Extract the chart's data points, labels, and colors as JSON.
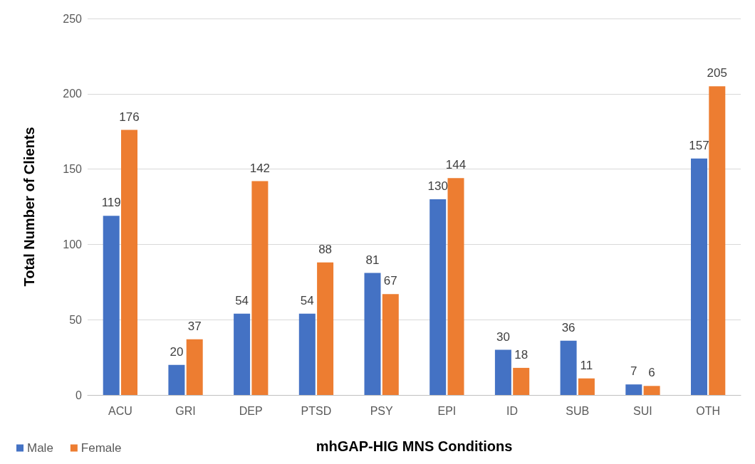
{
  "chart_data": {
    "type": "bar",
    "xlabel": "mhGAP-HIG MNS Conditions",
    "ylabel": "Total Number of Clients",
    "categories": [
      "ACU",
      "GRI",
      "DEP",
      "PTSD",
      "PSY",
      "EPI",
      "ID",
      "SUB",
      "SUI",
      "OTH"
    ],
    "series": [
      {
        "name": "Male",
        "color": "#4472c4",
        "values": [
          119,
          20,
          54,
          54,
          81,
          130,
          30,
          36,
          7,
          157
        ]
      },
      {
        "name": "Female",
        "color": "#ed7d31",
        "values": [
          176,
          37,
          142,
          88,
          67,
          144,
          18,
          11,
          6,
          205
        ]
      }
    ],
    "ylim": [
      0,
      250
    ],
    "yticks": [
      0,
      50,
      100,
      150,
      200,
      250
    ],
    "grid": "y",
    "legend": "bottom left",
    "data_labels": true
  }
}
